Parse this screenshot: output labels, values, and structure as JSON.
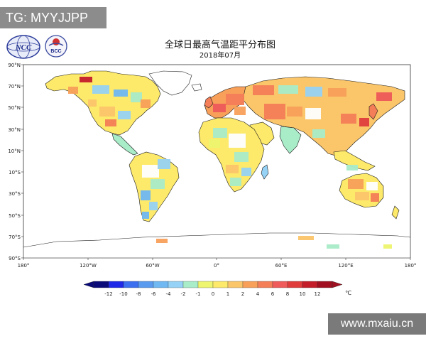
{
  "badge": {
    "text": "TG: MYYJJPP"
  },
  "logos": {
    "left": "NCC",
    "right": "BCC"
  },
  "map": {
    "title": "全球日最高气温距平分布图",
    "subtitle": "2018年07月",
    "lat_labels": [
      "90°N",
      "70°N",
      "50°N",
      "30°N",
      "10°N",
      "10°S",
      "30°S",
      "50°S",
      "70°S",
      "90°S"
    ],
    "lon_labels": [
      "180°",
      "120°W",
      "60°W",
      "0°",
      "60°E",
      "120°E",
      "180°"
    ]
  },
  "legend": {
    "labels": [
      "-12",
      "-10",
      "-8",
      "-6",
      "-4",
      "-2",
      "-1",
      "0",
      "1",
      "2",
      "4",
      "6",
      "8",
      "10",
      "12"
    ],
    "unit": "℃",
    "colors": [
      "#0a0a78",
      "#1e28e6",
      "#3c6ef0",
      "#5a9bf0",
      "#6fb8f2",
      "#96d2f5",
      "#a8ecc8",
      "#eef56e",
      "#fde96a",
      "#fbc66a",
      "#f8a05a",
      "#f47e58",
      "#ef5a5a",
      "#e03c3c",
      "#c41e2a",
      "#a01020"
    ]
  },
  "watermark": {
    "text": "www.mxaiu.cn"
  },
  "colors": {
    "ocean": "#ffffff",
    "coast": "#1a1a1a",
    "frame": "#333333"
  }
}
